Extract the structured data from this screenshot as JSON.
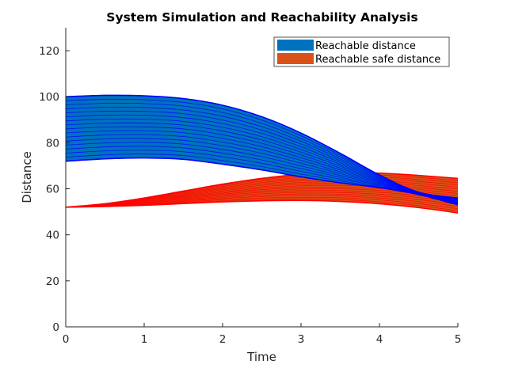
{
  "chart_data": {
    "type": "area",
    "title": "System Simulation and Reachability Analysis",
    "xlabel": "Time",
    "ylabel": "Distance",
    "xlim": [
      0,
      5
    ],
    "ylim": [
      0,
      130
    ],
    "xticks": [
      0,
      1,
      2,
      3,
      4,
      5
    ],
    "yticks": [
      0,
      20,
      40,
      60,
      80,
      100,
      120
    ],
    "grid": false,
    "legend_position": "top-right",
    "series": [
      {
        "name": "Reachable distance",
        "fill_color": "#0072BD",
        "line_color": "#0000FF",
        "x": [
          0,
          0.5,
          1,
          1.5,
          2,
          2.5,
          3,
          3.5,
          4,
          4.5,
          5
        ],
        "upper": [
          100,
          100.6,
          100.4,
          99.2,
          96.3,
          91.3,
          84.2,
          75.4,
          66.0,
          58.5,
          56.0
        ],
        "lower": [
          72,
          73.0,
          73.4,
          72.8,
          70.7,
          68.2,
          65.2,
          62.6,
          60.5,
          57.5,
          53.0
        ]
      },
      {
        "name": "Reachable safe distance",
        "fill_color": "#D95319",
        "line_color": "#FF0000",
        "x": [
          0,
          0.5,
          1,
          1.5,
          2,
          2.5,
          3,
          3.5,
          4,
          4.5,
          5
        ],
        "upper": [
          52,
          53.5,
          56.0,
          59.0,
          62.0,
          64.5,
          66.3,
          67.0,
          66.8,
          65.8,
          64.5
        ],
        "lower": [
          52,
          52.3,
          52.8,
          53.6,
          54.3,
          54.8,
          54.9,
          54.5,
          53.5,
          51.8,
          49.5
        ]
      }
    ]
  }
}
